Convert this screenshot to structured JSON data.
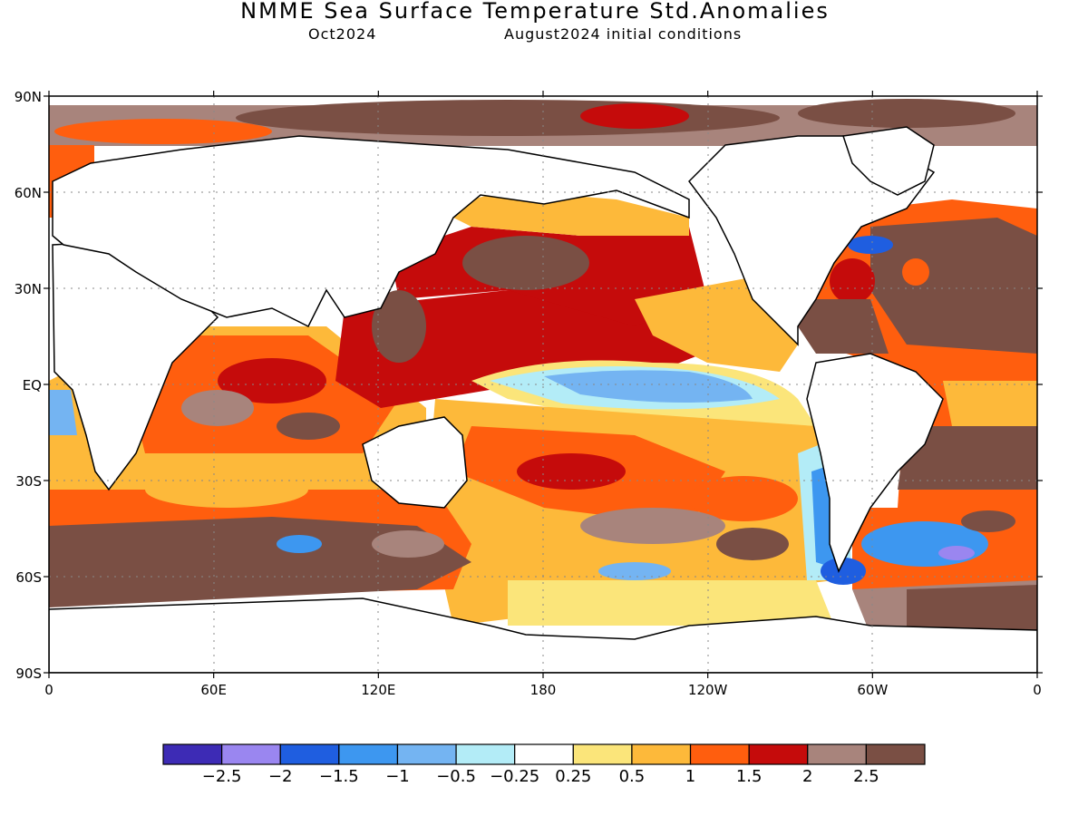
{
  "title": "NMME Sea Surface Temperature Std.Anomalies",
  "subtitle_left": "Oct2024",
  "subtitle_right": "August2024 initial conditions",
  "lat_labels": [
    "90N",
    "60N",
    "30N",
    "EQ",
    "30S",
    "60S",
    "90S"
  ],
  "lon_labels": [
    "0",
    "60E",
    "120E",
    "180",
    "120W",
    "60W",
    "0"
  ],
  "colorbar": {
    "colors": [
      "#3d2bb5",
      "#9a86f0",
      "#1f5ee0",
      "#3d97f0",
      "#74b4f2",
      "#b3ecf7",
      "#ffffff",
      "#fbe57a",
      "#fdb93a",
      "#ff5e0e",
      "#c50b0b",
      "#a8847c",
      "#7a4f44"
    ],
    "labels": [
      "−2.5",
      "−2",
      "−1.5",
      "−1",
      "−0.5",
      "−0.25",
      "0.25",
      "0.5",
      "1",
      "1.5",
      "2",
      "2.5"
    ]
  }
}
